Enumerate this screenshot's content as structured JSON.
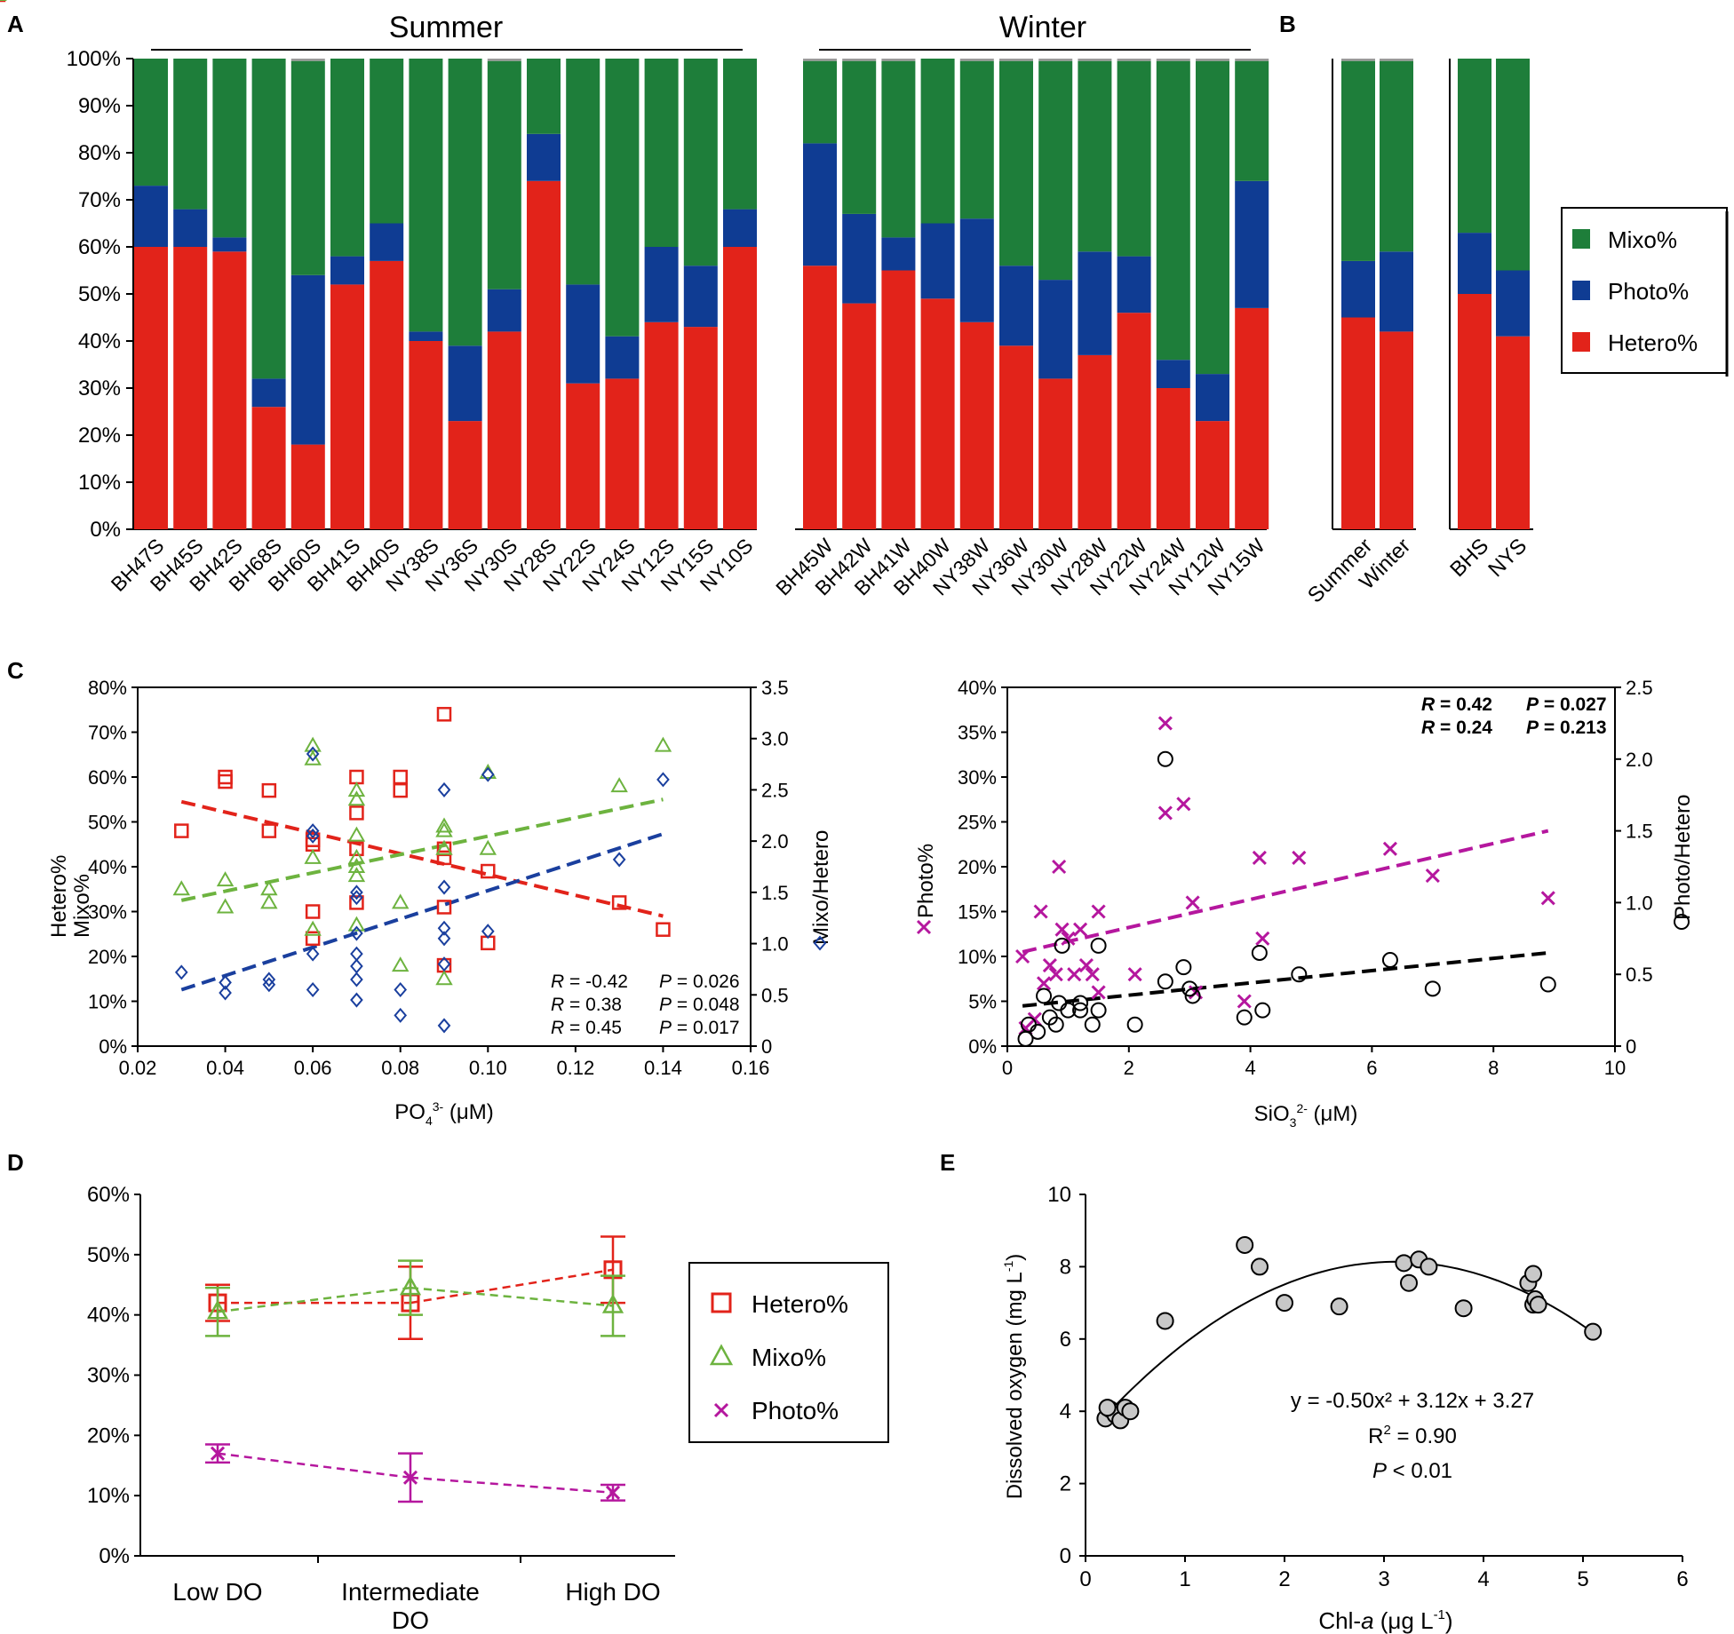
{
  "panel_labels": {
    "A": "A",
    "B": "B",
    "C": "C",
    "D": "D",
    "E": "E"
  },
  "colors": {
    "hetero": "#e2231a",
    "photo": "#0f3c93",
    "mixo": "#1e7e3a",
    "gray": "#9a9a9a",
    "green_light": "#6db33f",
    "magenta": "#b5179e",
    "blue_dash": "#1a3f9e"
  },
  "chart_data": [
    {
      "id": "A",
      "type": "bar",
      "stacked": true,
      "yticks": [
        "0%",
        "10%",
        "20%",
        "30%",
        "40%",
        "50%",
        "60%",
        "70%",
        "80%",
        "90%",
        "100%"
      ],
      "ylim": [
        0,
        100
      ],
      "groups": [
        {
          "label": "Summer",
          "categories": [
            "BH47S",
            "BH45S",
            "BH42S",
            "BH68S",
            "BH60S",
            "BH41S",
            "BH40S",
            "NY38S",
            "NY36S",
            "NY30S",
            "NY28S",
            "NY22S",
            "NY24S",
            "NY12S",
            "NY15S",
            "NY10S"
          ],
          "hetero": [
            60,
            60,
            59,
            26,
            18,
            52,
            57,
            40,
            23,
            42,
            74,
            31,
            32,
            44,
            43,
            60
          ],
          "photo": [
            13,
            8,
            3,
            6,
            36,
            6,
            8,
            2,
            16,
            9,
            10,
            21,
            9,
            16,
            13,
            8
          ],
          "mixo": [
            27,
            32,
            38,
            68,
            45.5,
            42,
            35,
            58,
            61,
            48.5,
            16,
            48,
            59,
            40,
            44,
            32
          ],
          "other": [
            0,
            0,
            0,
            0,
            0.5,
            0,
            0,
            0,
            0,
            0.5,
            0,
            0,
            0,
            0,
            0,
            0
          ]
        },
        {
          "label": "Winter",
          "categories": [
            "BH45W",
            "BH42W",
            "BH41W",
            "BH40W",
            "NY38W",
            "NY36W",
            "NY30W",
            "NY28W",
            "NY22W",
            "NY24W",
            "NY12W",
            "NY15W"
          ],
          "hetero": [
            56,
            48,
            55,
            49,
            44,
            39,
            32,
            37,
            46,
            30,
            23,
            47
          ],
          "photo": [
            26,
            19,
            7,
            16,
            22,
            17,
            21,
            22,
            12,
            6,
            10,
            27
          ],
          "mixo": [
            17.5,
            32.5,
            37.5,
            35,
            33.5,
            43.5,
            46.5,
            40.5,
            41.5,
            63.5,
            66.5,
            25.5
          ],
          "other": [
            0.5,
            0.5,
            0.5,
            0,
            0.5,
            0.5,
            0.5,
            0.5,
            0.5,
            0.5,
            0.5,
            0.5
          ]
        }
      ]
    },
    {
      "id": "B",
      "type": "bar",
      "stacked": true,
      "groups": [
        {
          "categories": [
            "Summer",
            "Winter"
          ],
          "hetero": [
            45,
            42
          ],
          "photo": [
            12,
            17
          ],
          "mixo": [
            42.5,
            40.5
          ],
          "other": [
            0.5,
            0.5
          ]
        },
        {
          "categories": [
            "BHS",
            "NYS"
          ],
          "hetero": [
            50,
            41
          ],
          "photo": [
            13,
            14
          ],
          "mixo": [
            37,
            45
          ],
          "other": [
            0,
            0
          ]
        }
      ],
      "legend": [
        "Mixo%",
        "Photo%",
        "Hetero%"
      ]
    },
    {
      "id": "C1",
      "type": "scatter",
      "xlabel_main": "PO",
      "xlabel_sub": "4",
      "xlabel_sup": "3-",
      "xlabel_tail": " (μM)",
      "xticks": [
        "0.02",
        "0.04",
        "0.06",
        "0.08",
        "0.10",
        "0.12",
        "0.14",
        "0.16"
      ],
      "xlim": [
        0.02,
        0.16
      ],
      "yticks_left": [
        "0%",
        "10%",
        "20%",
        "30%",
        "40%",
        "50%",
        "60%",
        "70%",
        "80%"
      ],
      "ylim_left": [
        0,
        80
      ],
      "yticks_right": [
        "0",
        "0.5",
        "1.0",
        "1.5",
        "2.0",
        "2.5",
        "3.0",
        "3.5"
      ],
      "ylim_right": [
        0,
        3.5
      ],
      "ylabel_left_1": "Hetero%",
      "ylabel_left_2": "Mixo%",
      "ylabel_right": "Mixo/Hetero",
      "hetero": [
        [
          0.03,
          48
        ],
        [
          0.04,
          59
        ],
        [
          0.04,
          60
        ],
        [
          0.05,
          48
        ],
        [
          0.05,
          57
        ],
        [
          0.06,
          46
        ],
        [
          0.06,
          45
        ],
        [
          0.06,
          30
        ],
        [
          0.06,
          24
        ],
        [
          0.07,
          60
        ],
        [
          0.07,
          52
        ],
        [
          0.07,
          44
        ],
        [
          0.07,
          32
        ],
        [
          0.08,
          60
        ],
        [
          0.08,
          57
        ],
        [
          0.09,
          74
        ],
        [
          0.09,
          44
        ],
        [
          0.09,
          42
        ],
        [
          0.09,
          31
        ],
        [
          0.09,
          18
        ],
        [
          0.1,
          39
        ],
        [
          0.1,
          23
        ],
        [
          0.13,
          32
        ],
        [
          0.14,
          26
        ]
      ],
      "mixo": [
        [
          0.03,
          35
        ],
        [
          0.04,
          37
        ],
        [
          0.04,
          31
        ],
        [
          0.05,
          35
        ],
        [
          0.05,
          32
        ],
        [
          0.06,
          67
        ],
        [
          0.06,
          64
        ],
        [
          0.06,
          42
        ],
        [
          0.06,
          26
        ],
        [
          0.07,
          57
        ],
        [
          0.07,
          55
        ],
        [
          0.07,
          47
        ],
        [
          0.07,
          42
        ],
        [
          0.07,
          40
        ],
        [
          0.07,
          38
        ],
        [
          0.07,
          27
        ],
        [
          0.08,
          32
        ],
        [
          0.08,
          18
        ],
        [
          0.09,
          49
        ],
        [
          0.09,
          48
        ],
        [
          0.09,
          44
        ],
        [
          0.09,
          15
        ],
        [
          0.1,
          44
        ],
        [
          0.1,
          61
        ],
        [
          0.13,
          58
        ],
        [
          0.14,
          67
        ]
      ],
      "ratio": [
        [
          0.03,
          0.72
        ],
        [
          0.04,
          0.62
        ],
        [
          0.04,
          0.52
        ],
        [
          0.05,
          0.65
        ],
        [
          0.05,
          0.6
        ],
        [
          0.06,
          2.85
        ],
        [
          0.06,
          2.1
        ],
        [
          0.06,
          2.05
        ],
        [
          0.06,
          0.9
        ],
        [
          0.06,
          0.55
        ],
        [
          0.07,
          1.5
        ],
        [
          0.07,
          1.45
        ],
        [
          0.07,
          1.1
        ],
        [
          0.07,
          0.9
        ],
        [
          0.07,
          0.78
        ],
        [
          0.07,
          0.65
        ],
        [
          0.07,
          0.45
        ],
        [
          0.08,
          0.55
        ],
        [
          0.08,
          0.3
        ],
        [
          0.09,
          2.5
        ],
        [
          0.09,
          1.55
        ],
        [
          0.09,
          1.15
        ],
        [
          0.09,
          1.05
        ],
        [
          0.09,
          0.8
        ],
        [
          0.09,
          0.2
        ],
        [
          0.1,
          2.65
        ],
        [
          0.1,
          1.12
        ],
        [
          0.13,
          1.82
        ],
        [
          0.14,
          2.6
        ]
      ],
      "fits": [
        {
          "series": "hetero",
          "x0": 0.03,
          "y0": 54.5,
          "x1": 0.14,
          "y1": 29
        },
        {
          "series": "mixo",
          "x0": 0.03,
          "y0": 32.5,
          "x1": 0.14,
          "y1": 55
        },
        {
          "series": "ratio",
          "x0": 0.03,
          "y0": 0.55,
          "x1": 0.14,
          "y1": 2.07
        }
      ],
      "stats": [
        {
          "r": "= -0.42",
          "p": "= 0.026",
          "color": "hetero"
        },
        {
          "r": "= 0.38",
          "p": "= 0.048",
          "color": "green_light"
        },
        {
          "r": "= 0.45",
          "p": "= 0.017",
          "color": "blue_dash"
        }
      ]
    },
    {
      "id": "C2",
      "type": "scatter",
      "xlabel_main": "SiO",
      "xlabel_sub": "3",
      "xlabel_sup": "2-",
      "xlabel_tail": " (μM)",
      "xticks": [
        "0",
        "2",
        "4",
        "6",
        "8",
        "10"
      ],
      "xlim": [
        0,
        10
      ],
      "yticks_left": [
        "0%",
        "5%",
        "10%",
        "15%",
        "20%",
        "25%",
        "30%",
        "35%",
        "40%"
      ],
      "ylim_left": [
        0,
        40
      ],
      "yticks_right": [
        "0",
        "0.5",
        "1.0",
        "1.5",
        "2.0",
        "2.5"
      ],
      "ylim_right": [
        0,
        2.5
      ],
      "ylabel_left": "Photo%",
      "ylabel_right": "Photo/Hetero",
      "photo": [
        [
          0.25,
          10
        ],
        [
          0.3,
          2
        ],
        [
          0.45,
          3
        ],
        [
          0.55,
          15
        ],
        [
          0.6,
          7
        ],
        [
          0.7,
          9
        ],
        [
          0.8,
          8
        ],
        [
          0.85,
          20
        ],
        [
          0.9,
          13
        ],
        [
          1.0,
          12
        ],
        [
          1.1,
          8
        ],
        [
          1.2,
          13
        ],
        [
          1.3,
          9
        ],
        [
          1.4,
          8
        ],
        [
          1.5,
          15
        ],
        [
          1.5,
          6
        ],
        [
          2.1,
          8
        ],
        [
          2.6,
          36
        ],
        [
          2.6,
          26
        ],
        [
          2.9,
          27
        ],
        [
          3.05,
          16
        ],
        [
          3.1,
          6
        ],
        [
          3.9,
          5
        ],
        [
          4.15,
          21
        ],
        [
          4.2,
          12
        ],
        [
          4.8,
          21
        ],
        [
          6.3,
          22
        ],
        [
          7.0,
          19
        ],
        [
          8.9,
          16.5
        ]
      ],
      "ratio": [
        [
          0.3,
          0.05
        ],
        [
          0.35,
          0.15
        ],
        [
          0.5,
          0.1
        ],
        [
          0.6,
          0.35
        ],
        [
          0.7,
          0.2
        ],
        [
          0.8,
          0.15
        ],
        [
          0.85,
          0.3
        ],
        [
          0.9,
          0.7
        ],
        [
          1.0,
          0.25
        ],
        [
          1.2,
          0.25
        ],
        [
          1.2,
          0.3
        ],
        [
          1.4,
          0.15
        ],
        [
          1.5,
          0.7
        ],
        [
          1.5,
          0.25
        ],
        [
          2.1,
          0.15
        ],
        [
          2.6,
          0.45
        ],
        [
          2.6,
          2.0
        ],
        [
          2.9,
          0.55
        ],
        [
          3.0,
          0.4
        ],
        [
          3.05,
          0.35
        ],
        [
          3.9,
          0.2
        ],
        [
          4.15,
          0.65
        ],
        [
          4.2,
          0.25
        ],
        [
          4.8,
          0.5
        ],
        [
          6.3,
          0.6
        ],
        [
          7.0,
          0.4
        ],
        [
          8.9,
          0.43
        ]
      ],
      "fits": [
        {
          "series": "photo",
          "x0": 0.25,
          "y0": 10.5,
          "x1": 8.9,
          "y1": 24
        },
        {
          "series": "ratio",
          "x0": 0.25,
          "y0": 0.28,
          "x1": 8.9,
          "y1": 0.65
        }
      ],
      "stats": [
        {
          "r": "= 0.42",
          "p": "= 0.027",
          "color": "magenta"
        },
        {
          "r": "= 0.24",
          "p": "= 0.213",
          "color": "black"
        }
      ]
    },
    {
      "id": "D",
      "type": "line",
      "categories_1": [
        "Low DO",
        "Intermediate",
        "High DO"
      ],
      "categories_2": [
        "",
        "DO",
        ""
      ],
      "yticks": [
        "0%",
        "10%",
        "20%",
        "30%",
        "40%",
        "50%",
        "60%"
      ],
      "ylim": [
        0,
        60
      ],
      "series": [
        {
          "name": "Hetero%",
          "values": [
            42,
            42,
            47.5
          ],
          "err": [
            3,
            6,
            5.5
          ],
          "color": "hetero",
          "marker": "square"
        },
        {
          "name": "Mixo%",
          "values": [
            40.5,
            44.5,
            41.5
          ],
          "err": [
            4,
            4.5,
            5
          ],
          "color": "green_light",
          "marker": "triangle"
        },
        {
          "name": "Photo%",
          "values": [
            17,
            13,
            10.5
          ],
          "err": [
            1.5,
            4,
            1.3
          ],
          "color": "magenta",
          "marker": "cross"
        }
      ],
      "legend": [
        "Hetero%",
        "Mixo%",
        "Photo%"
      ]
    },
    {
      "id": "E",
      "type": "scatter",
      "xlabel_main": "Chl-",
      "xlabel_italic": "a",
      "xlabel_tail": " (μg L",
      "xlabel_sup": "-1",
      "xlabel_end": ")",
      "ylabel_main": "Dissolved oxygen (mg L",
      "ylabel_sup": "-1",
      "ylabel_end": ")",
      "xticks": [
        "0",
        "1",
        "2",
        "3",
        "4",
        "5",
        "6"
      ],
      "xlim": [
        0,
        6
      ],
      "yticks": [
        "0",
        "2",
        "4",
        "6",
        "8",
        "10"
      ],
      "ylim": [
        0,
        10
      ],
      "points": [
        [
          0.2,
          3.8
        ],
        [
          0.25,
          4.05
        ],
        [
          0.3,
          3.9
        ],
        [
          0.35,
          3.75
        ],
        [
          0.4,
          4.1
        ],
        [
          0.45,
          4.0
        ],
        [
          0.22,
          4.1
        ],
        [
          0.8,
          6.5
        ],
        [
          1.6,
          8.6
        ],
        [
          1.75,
          8.0
        ],
        [
          2.0,
          7.0
        ],
        [
          2.55,
          6.9
        ],
        [
          3.2,
          8.1
        ],
        [
          3.25,
          7.55
        ],
        [
          3.35,
          8.2
        ],
        [
          3.45,
          8.0
        ],
        [
          3.8,
          6.85
        ],
        [
          4.45,
          7.55
        ],
        [
          4.5,
          7.8
        ],
        [
          4.5,
          6.95
        ],
        [
          4.52,
          7.1
        ],
        [
          4.55,
          6.95
        ],
        [
          5.1,
          6.2
        ]
      ],
      "fit": {
        "a": -0.5,
        "b": 3.12,
        "c": 3.27,
        "x_from": 0.3,
        "x_to": 5.1
      },
      "equation": "y = -0.50x² + 3.12x + 3.27",
      "r2_main": "R",
      "r2_sup": "2",
      "r2_value": " = 0.90",
      "p_main": "P",
      "p_value": " < 0.01"
    }
  ]
}
